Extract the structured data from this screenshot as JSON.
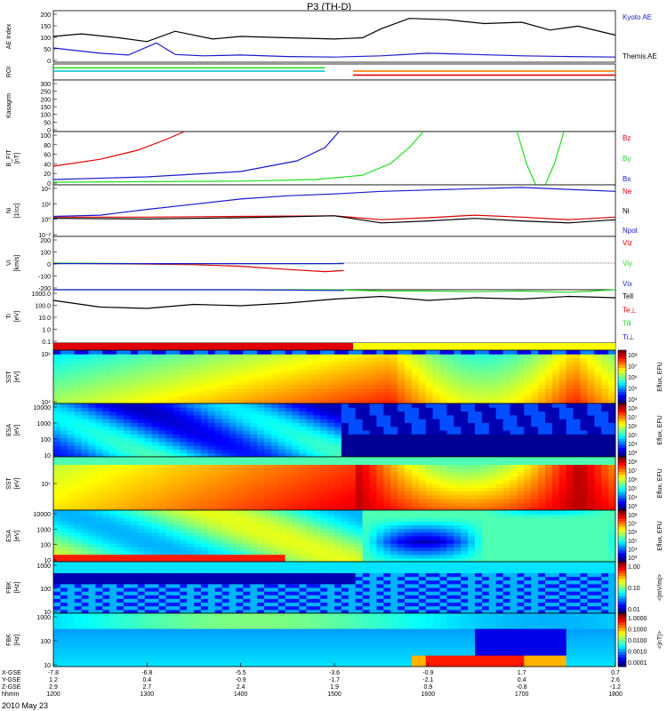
{
  "title": "P3 (TH-D)",
  "date_label": "2010 May 23",
  "colors": {
    "black": "#000000",
    "red": "#e00000",
    "green": "#22dd22",
    "blue": "#1a1acc",
    "cyan": "#00c8c8",
    "orange": "#ff7a00"
  },
  "chart_data": {
    "type": "line",
    "time_range_hhmm": [
      "1200",
      "1800"
    ],
    "time_axis_hours": [
      12,
      18
    ],
    "orbit_rows": {
      "labels": [
        "X-GSE",
        "Y-GSE",
        "Z-GSE",
        "hhmm"
      ],
      "columns": [
        {
          "x": "-7.8",
          "y": "1.2",
          "z": "2.9",
          "t": "1200"
        },
        {
          "x": "-6.8",
          "y": "0.4",
          "z": "2.7",
          "t": "1300"
        },
        {
          "x": "-5.5",
          "y": "-0.9",
          "z": "2.4",
          "t": "1400"
        },
        {
          "x": "-3.6",
          "y": "-1.7",
          "z": "1.9",
          "t": "1500"
        },
        {
          "x": "-0.9",
          "y": "-2.1",
          "z": "0.9",
          "t": "1600"
        },
        {
          "x": "1.7",
          "y": "0.4",
          "z": "-0.8",
          "t": "1700"
        },
        {
          "x": "0.7",
          "y": "2.6",
          "z": "-1.2",
          "t": "1800"
        }
      ]
    },
    "panels": [
      {
        "id": "ae",
        "ylabel": "AE Index",
        "ticks": [
          "200",
          "150",
          "100",
          "50",
          "0"
        ],
        "ylim": [
          0,
          200
        ],
        "legend": [
          {
            "text": "Kyoto AE",
            "color": "blue"
          },
          {
            "text": "Themis AE",
            "color": "black"
          }
        ],
        "series": [
          {
            "name": "Kyoto AE",
            "color": "blue",
            "x": [
              12,
              12.5,
              12.8,
              13.1,
              13.3,
              13.6,
              14,
              14.5,
              15,
              15.5,
              16,
              16.5,
              17,
              17.5,
              18
            ],
            "y": [
              55,
              35,
              28,
              75,
              30,
              25,
              28,
              22,
              20,
              25,
              35,
              30,
              25,
              22,
              20
            ]
          },
          {
            "name": "Themis AE",
            "color": "black",
            "x": [
              12,
              12.3,
              12.7,
              13,
              13.3,
              13.7,
              14,
              14.5,
              15,
              15.3,
              15.5,
              15.8,
              16.2,
              16.6,
              17,
              17.3,
              17.6,
              18
            ],
            "y": [
              100,
              110,
              95,
              80,
              120,
              90,
              100,
              95,
              90,
              95,
              130,
              170,
              165,
              150,
              155,
              125,
              140,
              105
            ]
          }
        ]
      },
      {
        "id": "roi",
        "ylabel": "ROI",
        "ticks": [],
        "bars": [
          {
            "color": "cyan",
            "x": [
              12,
              14.9
            ],
            "level": 0.6
          },
          {
            "color": "orange",
            "x": [
              15.2,
              18
            ],
            "level": 0.6
          },
          {
            "color": "red",
            "x": [
              15.2,
              18
            ],
            "level": 0.35
          },
          {
            "color": "green",
            "x": [
              12,
              14.9
            ],
            "level": 0.8
          }
        ]
      },
      {
        "id": "kp",
        "ylabel": "Kasagrm",
        "ticks": [
          "300",
          "250",
          "200",
          "150",
          "100",
          "50",
          "0"
        ],
        "ylim": [
          0,
          300
        ]
      },
      {
        "id": "b",
        "ylabel": "B_FIT",
        "ylabel2": "[nT]",
        "ticks": [
          "100",
          "80",
          "60",
          "40",
          "20",
          "0"
        ],
        "ylim": [
          0,
          100
        ],
        "legend": [
          {
            "text": "Bz",
            "color": "red"
          },
          {
            "text": "By",
            "color": "green"
          },
          {
            "text": "Bx",
            "color": "blue"
          }
        ],
        "series": [
          {
            "name": "Bz",
            "color": "red",
            "x": [
              12,
              12.5,
              12.9,
              13.2,
              13.4
            ],
            "y": [
              35,
              48,
              65,
              85,
              100
            ]
          },
          {
            "name": "By",
            "color": "green",
            "x": [
              12,
              13,
              14,
              14.8,
              15.3,
              15.6,
              15.8,
              15.95
            ],
            "y": [
              5,
              6,
              7,
              10,
              18,
              40,
              70,
              100
            ]
          },
          {
            "name": "By",
            "color": "green",
            "x": [
              16.95,
              17.05,
              17.15,
              17.25,
              17.35,
              17.45
            ],
            "y": [
              100,
              40,
              0,
              -5,
              40,
              100
            ]
          },
          {
            "name": "Bx",
            "color": "blue",
            "x": [
              12,
              13,
              14,
              14.6,
              14.9,
              15.05
            ],
            "y": [
              10,
              15,
              25,
              45,
              70,
              100
            ]
          }
        ]
      },
      {
        "id": "ni",
        "ylabel": "Ni",
        "ylabel2": "[1/cc]",
        "ticks": [
          "10⁴",
          "10²",
          "10⁰",
          "10⁻²"
        ],
        "ylim": [
          -3,
          5
        ],
        "legend": [
          {
            "text": "Ne",
            "color": "red"
          },
          {
            "text": "Ni",
            "color": "black"
          },
          {
            "text": "Npot",
            "color": "blue"
          }
        ],
        "series": [
          {
            "name": "Ne",
            "color": "red",
            "x": [
              12,
              13,
              14,
              15,
              15.5,
              16,
              16.5,
              17,
              17.5,
              18
            ],
            "y": [
              0,
              0,
              0.1,
              0.2,
              -0.4,
              -0.1,
              0.3,
              0,
              -0.4,
              0
            ]
          },
          {
            "name": "Ni",
            "color": "black",
            "x": [
              12,
              13,
              14,
              15,
              15.5,
              16,
              16.5,
              17,
              17.5,
              18
            ],
            "y": [
              -0.2,
              -0.3,
              -0.1,
              0.2,
              -0.9,
              -0.6,
              -0.2,
              -0.6,
              -0.9,
              -0.4
            ]
          },
          {
            "name": "Npot",
            "color": "blue",
            "x": [
              12,
              12.5,
              13,
              13.5,
              14,
              14.5,
              15,
              15.5,
              16,
              16.5,
              17,
              17.5,
              18
            ],
            "y": [
              0.1,
              0.3,
              1.2,
              2.0,
              2.8,
              3.3,
              3.6,
              4.0,
              4.2,
              4.4,
              4.6,
              4.3,
              4.0
            ]
          }
        ]
      },
      {
        "id": "vi",
        "ylabel": "Vi",
        "ylabel2": "[km/s]",
        "ticks": [
          "200",
          "100",
          "0",
          "-100",
          "-200"
        ],
        "ylim": [
          -250,
          250
        ],
        "legend": [
          {
            "text": "Viz",
            "color": "red"
          },
          {
            "text": "Viy",
            "color": "green"
          },
          {
            "text": "Vix",
            "color": "blue"
          }
        ],
        "series": [
          {
            "name": "Viz",
            "color": "red",
            "x": [
              12,
              12.5,
              13,
              13.5,
              14,
              14.5,
              14.9,
              15.1
            ],
            "y": [
              0,
              -5,
              -10,
              -15,
              -30,
              -60,
              -80,
              -70
            ]
          },
          {
            "name": "Viy",
            "color": "green",
            "x": [
              12,
              13,
              14,
              15,
              15.1
            ],
            "y": [
              0,
              -5,
              -5,
              -5,
              0
            ]
          },
          {
            "name": "Vix",
            "color": "blue",
            "x": [
              12,
              13,
              14,
              15,
              15.1
            ],
            "y": [
              -5,
              -5,
              -5,
              -5,
              -5
            ]
          }
        ]
      },
      {
        "id": "ti",
        "ylabel": "Ti",
        "ylabel2": "[eV]",
        "ticks": [
          "1000.0",
          "100.0",
          "10.0",
          "1.0",
          "0.1"
        ],
        "ylim": [
          -1,
          3
        ],
        "legend": [
          {
            "text": "Tell",
            "color": "black"
          },
          {
            "text": "Te⊥",
            "color": "red"
          },
          {
            "text": "Ti‖",
            "color": "green"
          },
          {
            "text": "Ti⊥",
            "color": "blue"
          }
        ],
        "series": [
          {
            "name": "Tell",
            "color": "black",
            "x": [
              12,
              12.5,
              13,
              13.5,
              14,
              14.5,
              15,
              15.5,
              16,
              16.5,
              17,
              17.5,
              18
            ],
            "y": [
              2.2,
              1.7,
              1.6,
              1.9,
              1.8,
              2.0,
              2.3,
              2.5,
              2.2,
              2.4,
              2.3,
              2.5,
              2.4
            ]
          },
          {
            "name": "Ti‖",
            "color": "green",
            "x": [
              12,
              13,
              14,
              15,
              15.5,
              16,
              16.5,
              17,
              17.5,
              18
            ],
            "y": [
              3.0,
              3.0,
              3.0,
              3.0,
              2.9,
              2.9,
              2.85,
              2.9,
              2.8,
              3.0
            ]
          },
          {
            "name": "Ti⊥",
            "color": "blue",
            "x": [
              12,
              13,
              14,
              15,
              15.1
            ],
            "y": [
              3.1,
              3.05,
              3.0,
              2.95,
              2.95
            ]
          }
        ]
      },
      {
        "id": "mode",
        "ylabel": "",
        "bars": [
          {
            "color": "red",
            "x": [
              12,
              15.2
            ],
            "level": 0.5
          },
          {
            "color": "yellow",
            "x": [
              15.2,
              18
            ],
            "level": 0.5
          }
        ]
      },
      {
        "id": "sst_e",
        "ylabel": "SST",
        "ylabel2": "[eV]",
        "ticks": [
          "10⁶",
          "10⁴"
        ],
        "colorbar_ticks": [
          "10⁸",
          "10⁷",
          "10⁶",
          "10⁵",
          "10⁴"
        ],
        "colorbar_label": "Eflux, EFU"
      },
      {
        "id": "esa_e",
        "ylabel": "ESA",
        "ylabel2": "[eV]",
        "ticks": [
          "10000",
          "1000",
          "100",
          "10"
        ],
        "colorbar_ticks": [
          "10⁸",
          "10⁷",
          "10⁶",
          "10⁵",
          "10⁴",
          "10³"
        ],
        "colorbar_label": "Eflux, EFU"
      },
      {
        "id": "sst_i",
        "ylabel": "SST",
        "ylabel2": "[eV]",
        "ticks": [
          "10⁵"
        ],
        "colorbar_ticks": [
          "10⁸",
          "10⁷",
          "10⁶",
          "10⁵",
          "10⁴",
          "10³"
        ],
        "colorbar_label": "Eflux, EFU"
      },
      {
        "id": "esa_i",
        "ylabel": "ESA",
        "ylabel2": "[eV]",
        "ticks": [
          "10000",
          "1000",
          "100",
          "10"
        ],
        "colorbar_ticks": [
          "10⁸",
          "10⁷",
          "10⁶",
          "10⁵",
          "10⁴",
          "10³"
        ],
        "colorbar_label": "Eflux, EFU"
      },
      {
        "id": "fbk_e",
        "ylabel": "FBK",
        "ylabel2": "[Hz]",
        "ticks": [
          "1000",
          "100",
          "10"
        ],
        "colorbar_ticks": [
          "1.00",
          "0.10",
          "0.01"
        ],
        "colorbar_label": "<|mV/m|>"
      },
      {
        "id": "fbk_b",
        "ylabel": "FBK",
        "ylabel2": "[Hz]",
        "ticks": [
          "1000",
          "100",
          "10"
        ],
        "colorbar_ticks": [
          "1.0000",
          "0.1000",
          "0.0100",
          "0.0010",
          "0.0001"
        ],
        "colorbar_label": "<|nT|>"
      }
    ]
  }
}
